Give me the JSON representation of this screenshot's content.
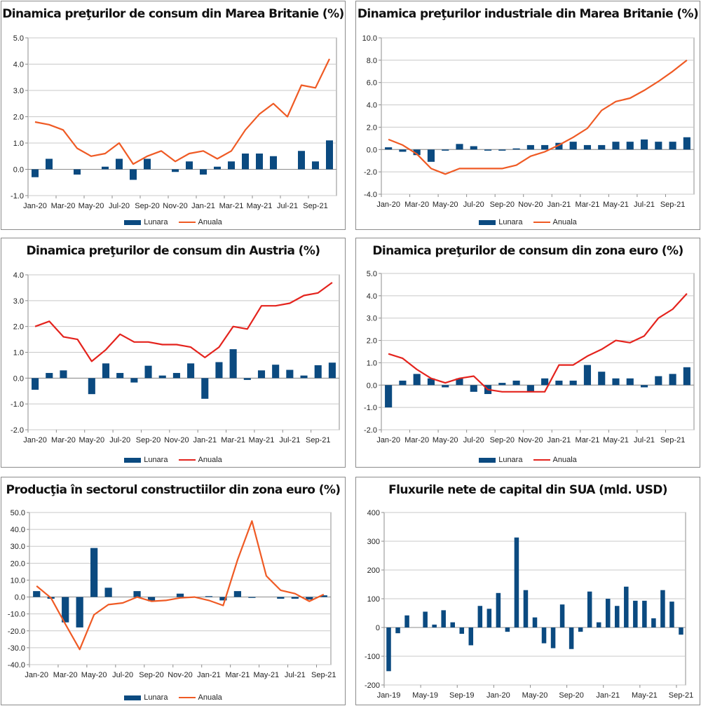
{
  "colors": {
    "bar": "#0b4a80",
    "line_orange": "#ef5a24",
    "line_red": "#e4231d",
    "grid": "#c8c8c8",
    "axis": "#8c8c8c"
  },
  "chart_data": [
    {
      "type": "bar+line",
      "title": "Dinamica preţurilor de consum din Marea Britanie (%)",
      "categories": [
        "Jan-20",
        "Feb-20",
        "Mar-20",
        "Apr-20",
        "May-20",
        "Jun-20",
        "Jul-20",
        "Aug-20",
        "Sep-20",
        "Oct-20",
        "Nov-20",
        "Dec-20",
        "Jan-21",
        "Feb-21",
        "Mar-21",
        "Apr-21",
        "May-21",
        "Jun-21",
        "Jul-21",
        "Aug-21",
        "Sep-21",
        "Oct-21"
      ],
      "x_tick_labels": [
        "Jan-20",
        "Mar-20",
        "May-20",
        "Jul-20",
        "Sep-20",
        "Nov-20",
        "Jan-21",
        "Mar-21",
        "May-21",
        "Jul-21",
        "Sep-21"
      ],
      "ylim": [
        -1.0,
        5.0
      ],
      "y_ticks": [
        "-1.0",
        "0.0",
        "1.0",
        "2.0",
        "3.0",
        "4.0",
        "5.0"
      ],
      "line_color": "orange",
      "series": [
        {
          "name": "Lunara",
          "kind": "bar",
          "values": [
            -0.3,
            0.4,
            0.0,
            -0.2,
            0.0,
            0.1,
            0.4,
            -0.4,
            0.4,
            0.0,
            -0.1,
            0.3,
            -0.2,
            0.1,
            0.3,
            0.6,
            0.6,
            0.5,
            0.0,
            0.7,
            0.3,
            1.1
          ]
        },
        {
          "name": "Anuala",
          "kind": "line",
          "values": [
            1.8,
            1.7,
            1.5,
            0.8,
            0.5,
            0.6,
            1.0,
            0.2,
            0.5,
            0.7,
            0.3,
            0.6,
            0.7,
            0.4,
            0.7,
            1.5,
            2.1,
            2.5,
            2.0,
            3.2,
            3.1,
            4.2
          ]
        }
      ]
    },
    {
      "type": "bar+line",
      "title": "Dinamica preţurilor industriale din Marea Britanie (%)",
      "categories": [
        "Jan-20",
        "Feb-20",
        "Mar-20",
        "Apr-20",
        "May-20",
        "Jun-20",
        "Jul-20",
        "Aug-20",
        "Sep-20",
        "Oct-20",
        "Nov-20",
        "Dec-20",
        "Jan-21",
        "Feb-21",
        "Mar-21",
        "Apr-21",
        "May-21",
        "Jun-21",
        "Jul-21",
        "Aug-21",
        "Sep-21",
        "Oct-21"
      ],
      "x_tick_labels": [
        "Jan-20",
        "Mar-20",
        "May-20",
        "Jul-20",
        "Sep-20",
        "Nov-20",
        "Jan-21",
        "Mar-21",
        "May-21",
        "Jul-21",
        "Sep-21"
      ],
      "ylim": [
        -4.0,
        10.0
      ],
      "y_ticks": [
        "-4.0",
        "-2.0",
        "0.0",
        "2.0",
        "4.0",
        "6.0",
        "8.0",
        "10.0"
      ],
      "line_color": "orange",
      "series": [
        {
          "name": "Lunara",
          "kind": "bar",
          "values": [
            0.2,
            -0.2,
            -0.5,
            -1.1,
            -0.1,
            0.5,
            0.3,
            -0.1,
            -0.1,
            0.1,
            0.4,
            0.4,
            0.6,
            0.7,
            0.4,
            0.4,
            0.7,
            0.7,
            0.9,
            0.7,
            0.7,
            1.1
          ]
        },
        {
          "name": "Anuala",
          "kind": "line",
          "values": [
            0.9,
            0.4,
            -0.4,
            -1.7,
            -2.2,
            -1.7,
            -1.7,
            -1.7,
            -1.7,
            -1.4,
            -0.6,
            -0.2,
            0.4,
            1.1,
            1.9,
            3.5,
            4.3,
            4.6,
            5.3,
            6.1,
            7.0,
            8.0
          ]
        }
      ]
    },
    {
      "type": "bar+line",
      "title": "Dinamica preţurilor de consum din Austria (%)",
      "categories": [
        "Jan-20",
        "Feb-20",
        "Mar-20",
        "Apr-20",
        "May-20",
        "Jun-20",
        "Jul-20",
        "Aug-20",
        "Sep-20",
        "Oct-20",
        "Nov-20",
        "Dec-20",
        "Jan-21",
        "Feb-21",
        "Mar-21",
        "Apr-21",
        "May-21",
        "Jun-21",
        "Jul-21",
        "Aug-21",
        "Sep-21",
        "Oct-21"
      ],
      "x_tick_labels": [
        "Jan-20",
        "Mar-20",
        "May-20",
        "Jul-20",
        "Sep-20",
        "Nov-20",
        "Jan-21",
        "Mar-21",
        "May-21",
        "Jul-21",
        "Sep-21"
      ],
      "ylim": [
        -2.0,
        4.0
      ],
      "y_ticks": [
        "-2.0",
        "-1.0",
        "0.0",
        "1.0",
        "2.0",
        "3.0",
        "4.0"
      ],
      "line_color": "red",
      "series": [
        {
          "name": "Lunara",
          "kind": "bar",
          "values": [
            -0.45,
            0.2,
            0.3,
            0.0,
            -0.62,
            0.57,
            0.2,
            -0.17,
            0.48,
            0.1,
            0.2,
            0.57,
            -0.8,
            0.62,
            1.12,
            -0.07,
            0.3,
            0.52,
            0.32,
            0.1,
            0.5,
            0.6
          ]
        },
        {
          "name": "Anuala",
          "kind": "line",
          "values": [
            2.0,
            2.2,
            1.6,
            1.5,
            0.65,
            1.1,
            1.7,
            1.4,
            1.4,
            1.3,
            1.3,
            1.2,
            0.8,
            1.2,
            2.0,
            1.9,
            2.8,
            2.8,
            2.9,
            3.2,
            3.3,
            3.7
          ]
        }
      ]
    },
    {
      "type": "bar+line",
      "title": "Dinamica preţurilor de consum din zona euro (%)",
      "categories": [
        "Jan-20",
        "Feb-20",
        "Mar-20",
        "Apr-20",
        "May-20",
        "Jun-20",
        "Jul-20",
        "Aug-20",
        "Sep-20",
        "Oct-20",
        "Nov-20",
        "Dec-20",
        "Jan-21",
        "Feb-21",
        "Mar-21",
        "Apr-21",
        "May-21",
        "Jun-21",
        "Jul-21",
        "Aug-21",
        "Sep-21",
        "Oct-21"
      ],
      "x_tick_labels": [
        "Jan-20",
        "Mar-20",
        "May-20",
        "Jul-20",
        "Sep-20",
        "Nov-20",
        "Jan-21",
        "Mar-21",
        "May-21",
        "Jul-21",
        "Sep-21"
      ],
      "ylim": [
        -2.0,
        5.0
      ],
      "y_ticks": [
        "-2.0",
        "-1.0",
        "0.0",
        "1.0",
        "2.0",
        "3.0",
        "4.0",
        "5.0"
      ],
      "line_color": "red",
      "series": [
        {
          "name": "Lunara",
          "kind": "bar",
          "values": [
            -1.0,
            0.2,
            0.5,
            0.3,
            -0.1,
            0.3,
            -0.3,
            -0.4,
            0.1,
            0.2,
            -0.3,
            0.3,
            0.2,
            0.2,
            0.9,
            0.6,
            0.3,
            0.3,
            -0.1,
            0.4,
            0.5,
            0.8
          ]
        },
        {
          "name": "Anuala",
          "kind": "line",
          "values": [
            1.4,
            1.2,
            0.7,
            0.3,
            0.1,
            0.3,
            0.4,
            -0.2,
            -0.3,
            -0.3,
            -0.3,
            -0.3,
            0.9,
            0.9,
            1.3,
            1.6,
            2.0,
            1.9,
            2.2,
            3.0,
            3.4,
            4.1
          ]
        }
      ]
    },
    {
      "type": "bar+line",
      "title": "Producţia în sectorul constructiilor din zona euro (%)",
      "categories": [
        "Jan-20",
        "Feb-20",
        "Mar-20",
        "Apr-20",
        "May-20",
        "Jun-20",
        "Jul-20",
        "Aug-20",
        "Sep-20",
        "Oct-20",
        "Nov-20",
        "Dec-20",
        "Jan-21",
        "Feb-21",
        "Mar-21",
        "Apr-21",
        "May-21",
        "Jun-21",
        "Jul-21",
        "Aug-21",
        "Sep-21"
      ],
      "x_tick_labels": [
        "Jan-20",
        "Mar-20",
        "May-20",
        "Jul-20",
        "Sep-20",
        "Nov-20",
        "Jan-21",
        "Mar-21",
        "May-21",
        "Jul-21",
        "Sep-21"
      ],
      "ylim": [
        -40.0,
        50.0
      ],
      "y_ticks": [
        "-40.0",
        "-30.0",
        "-20.0",
        "-10.0",
        "0.0",
        "10.0",
        "20.0",
        "30.0",
        "40.0",
        "50.0"
      ],
      "line_color": "orange",
      "series": [
        {
          "name": "Lunara",
          "kind": "bar",
          "values": [
            3.5,
            -1.0,
            -15.0,
            -18.0,
            29.0,
            5.5,
            0.0,
            3.5,
            -2.5,
            0.0,
            2.0,
            0.0,
            0.5,
            -2.0,
            3.5,
            -0.5,
            0.0,
            -1.0,
            -1.0,
            -1.5,
            1.0
          ]
        },
        {
          "name": "Anuala",
          "kind": "line",
          "values": [
            6.5,
            -0.5,
            -16.0,
            -31.0,
            -10.5,
            -4.5,
            -3.5,
            0.0,
            -2.5,
            -2.0,
            -0.5,
            0.0,
            -2.0,
            -5.0,
            22.0,
            45.0,
            12.5,
            4.0,
            2.0,
            -2.5,
            1.5
          ]
        }
      ]
    },
    {
      "type": "bar",
      "title": "Fluxurile nete de capital din SUA (mld. USD)",
      "categories": [
        "Jan-19",
        "Feb-19",
        "Mar-19",
        "Apr-19",
        "May-19",
        "Jun-19",
        "Jul-19",
        "Aug-19",
        "Sep-19",
        "Oct-19",
        "Nov-19",
        "Dec-19",
        "Jan-20",
        "Feb-20",
        "Mar-20",
        "Apr-20",
        "May-20",
        "Jun-20",
        "Jul-20",
        "Aug-20",
        "Sep-20",
        "Oct-20",
        "Nov-20",
        "Dec-20",
        "Jan-21",
        "Feb-21",
        "Mar-21",
        "Apr-21",
        "May-21",
        "Jun-21",
        "Jul-21",
        "Aug-21",
        "Sep-21"
      ],
      "x_tick_labels": [
        "Jan-19",
        "May-19",
        "Sep-19",
        "Jan-20",
        "May-20",
        "Sep-20",
        "Jan-21",
        "May-21",
        "Sep-21"
      ],
      "ylim": [
        -200,
        400
      ],
      "y_ticks": [
        "-200",
        "-100",
        "0",
        "100",
        "200",
        "300",
        "400"
      ],
      "series": [
        {
          "name": "",
          "kind": "bar",
          "values": [
            -152,
            -20,
            42,
            0,
            55,
            10,
            60,
            18,
            -22,
            -62,
            75,
            65,
            120,
            -15,
            313,
            130,
            35,
            -55,
            -72,
            80,
            -75,
            -15,
            125,
            18,
            100,
            75,
            142,
            93,
            93,
            32,
            130,
            90,
            -25
          ]
        }
      ]
    }
  ]
}
